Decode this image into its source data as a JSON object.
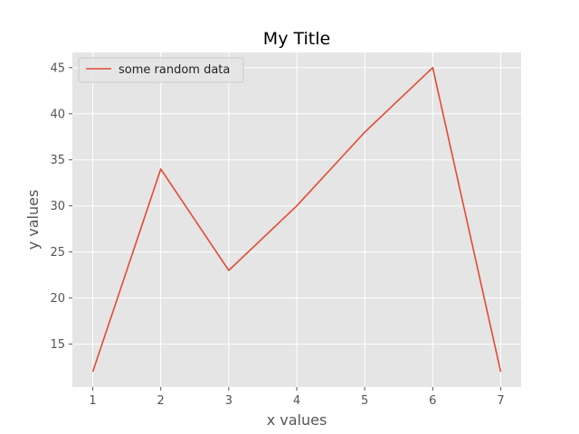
{
  "chart_data": {
    "type": "line",
    "title": "My Title",
    "xlabel": "x values",
    "ylabel": "y values",
    "x": [
      1,
      2,
      3,
      4,
      5,
      6,
      7
    ],
    "series": [
      {
        "name": "some random data",
        "values": [
          12,
          34,
          23,
          30,
          38,
          45,
          12
        ],
        "color": "#E24A33"
      }
    ],
    "xticks": [
      1,
      2,
      3,
      4,
      5,
      6,
      7
    ],
    "yticks": [
      15,
      20,
      25,
      30,
      35,
      40,
      45
    ],
    "xlim": [
      0.7,
      7.3
    ],
    "ylim": [
      10.35,
      46.65
    ],
    "grid": true,
    "legend_position": "upper-left",
    "style": "ggplot",
    "colors": {
      "plot_background": "#E5E5E5",
      "grid": "#FFFFFF",
      "axis_text": "#555555"
    }
  }
}
